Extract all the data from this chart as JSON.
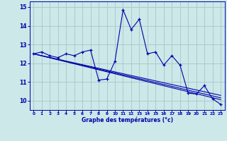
{
  "title": "Graphe des températures (°c)",
  "background_color": "#cce8e8",
  "grid_color": "#aacccc",
  "line_color": "#0000aa",
  "xlim": [
    -0.5,
    23.5
  ],
  "ylim": [
    9.5,
    15.3
  ],
  "yticks": [
    10,
    11,
    12,
    13,
    14,
    15
  ],
  "xticks": [
    0,
    1,
    2,
    3,
    4,
    5,
    6,
    7,
    8,
    9,
    10,
    11,
    12,
    13,
    14,
    15,
    16,
    17,
    18,
    19,
    20,
    21,
    22,
    23
  ],
  "series1": {
    "x": [
      0,
      1,
      2,
      3,
      4,
      5,
      6,
      7,
      8,
      9,
      10,
      11,
      12,
      13,
      14,
      15,
      16,
      17,
      18,
      19,
      20,
      21,
      22,
      23
    ],
    "y": [
      12.5,
      12.6,
      12.4,
      12.3,
      12.5,
      12.4,
      12.6,
      12.7,
      11.1,
      11.15,
      12.1,
      14.85,
      13.8,
      14.35,
      12.5,
      12.6,
      11.9,
      12.4,
      11.9,
      10.4,
      10.35,
      10.8,
      10.1,
      9.8
    ]
  },
  "trend_lines": [
    [
      12.5,
      10.05
    ],
    [
      12.5,
      10.15
    ],
    [
      12.5,
      10.28
    ]
  ]
}
